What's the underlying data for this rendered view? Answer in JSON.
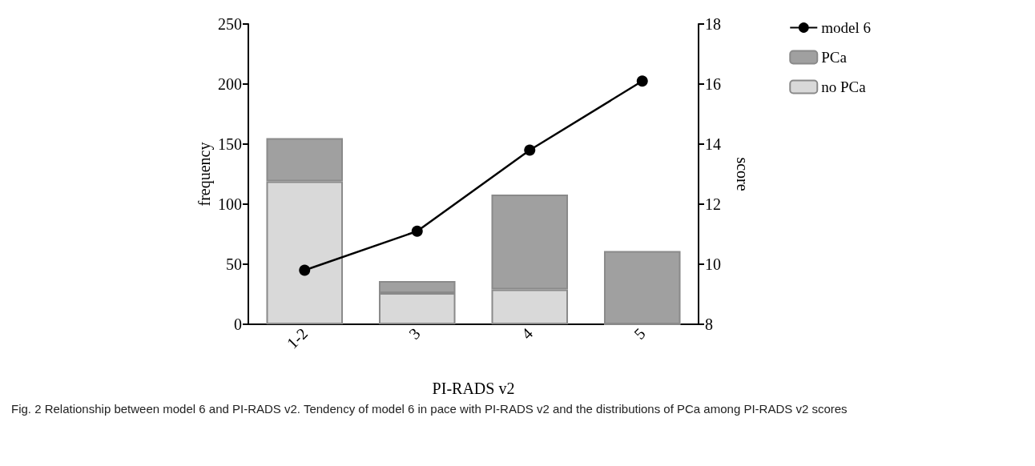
{
  "chart_data": {
    "type": "bar",
    "stacked": true,
    "categories": [
      "1-2",
      "3",
      "4",
      "5"
    ],
    "series": [
      {
        "name": "no PCa",
        "color": "#d9d9d9",
        "values": [
          119,
          26,
          29,
          0
        ]
      },
      {
        "name": "PCa",
        "color": "#a0a0a0",
        "values": [
          36,
          10,
          79,
          61
        ]
      },
      {
        "name": "model 6",
        "type": "line",
        "axis": "y2",
        "color": "#000000",
        "values": [
          9.8,
          11.1,
          13.8,
          16.1
        ]
      }
    ],
    "xlabel": "PI-RADS v2",
    "ylabel": "frequency",
    "y2label": "score",
    "ylim": [
      0,
      250
    ],
    "yticks": [
      0,
      50,
      100,
      150,
      200,
      250
    ],
    "y2lim": [
      8,
      18
    ],
    "y2ticks": [
      8,
      10,
      12,
      14,
      16,
      18
    ],
    "marker": "circle",
    "grid": false,
    "legend": "top right",
    "annotations": [
      "Fig. 2 Relationship between model 6 and PI-RADS v2. Tendency of model 6 in pace with PI-RADS v2 and the distributions of PCa among PI-RADS v2 scores"
    ]
  }
}
